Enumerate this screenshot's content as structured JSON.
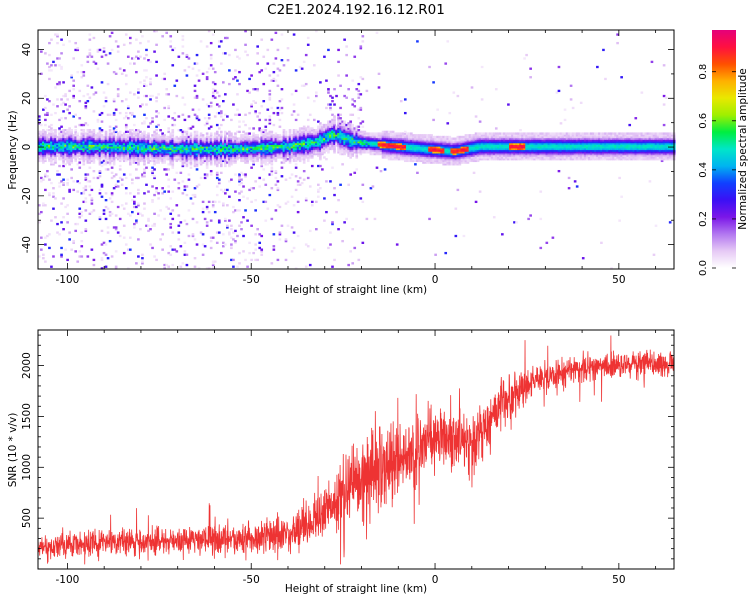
{
  "figure": {
    "title": "C2E1.2024.192.16.12.R01"
  },
  "chart_data": [
    {
      "type": "heatmap",
      "xlabel": "Height of straight line (km)",
      "ylabel": "Frequency (Hz)",
      "xlim": [
        -108,
        65
      ],
      "ylim": [
        -50,
        48
      ],
      "xticks": [
        -100,
        -50,
        0,
        50
      ],
      "yticks": [
        -40,
        -20,
        0,
        20,
        40
      ],
      "grid": false,
      "colorbar": {
        "label": "Normalized spectral amplitude",
        "range": [
          0,
          0.97
        ],
        "ticks": [
          0.0,
          0.2,
          0.4,
          0.6,
          0.8
        ],
        "colormap": [
          "#ffffff",
          "#e6c9f5",
          "#b277f0",
          "#7b16e8",
          "#3b10f5",
          "#1040ff",
          "#00b4f0",
          "#00e6c8",
          "#00ee40",
          "#a0ef00",
          "#e9e800",
          "#ffb000",
          "#ff5000",
          "#ff1040",
          "#e5007a"
        ]
      },
      "ridge_center_hz": [
        [
          -108,
          0
        ],
        [
          -90,
          0
        ],
        [
          -70,
          -1
        ],
        [
          -55,
          -1
        ],
        [
          -40,
          0
        ],
        [
          -32,
          2
        ],
        [
          -28,
          5
        ],
        [
          -22,
          2
        ],
        [
          -10,
          0
        ],
        [
          5,
          -2
        ],
        [
          12,
          0
        ],
        [
          30,
          0
        ],
        [
          65,
          0
        ]
      ],
      "peak_amplitude_segments_km": [
        [
          -16,
          -8
        ],
        [
          -2,
          2
        ],
        [
          4,
          9
        ],
        [
          20,
          24
        ]
      ]
    },
    {
      "type": "line",
      "xlabel": "Height of straight line (km)",
      "ylabel": "SNR (10 * v/v)",
      "xlim": [
        -108,
        65
      ],
      "ylim": [
        0,
        2350
      ],
      "xticks": [
        -100,
        -50,
        0,
        50
      ],
      "yticks": [
        500,
        1000,
        1500,
        2000
      ],
      "grid": false,
      "line_color": "#ee3333",
      "series": [
        {
          "x": [
            -108,
            -100,
            -90,
            -80,
            -70,
            -60,
            -50,
            -40,
            -35,
            -30,
            -25,
            -20,
            -15,
            -10,
            -5,
            0,
            5,
            10,
            15,
            20,
            25,
            30,
            35,
            40,
            50,
            60,
            65
          ],
          "y": [
            210,
            240,
            270,
            260,
            280,
            290,
            300,
            360,
            420,
            560,
            700,
            870,
            1020,
            1070,
            1200,
            1300,
            1300,
            1180,
            1450,
            1680,
            1800,
            1870,
            1930,
            1970,
            2000,
            2020,
            2040
          ],
          "noise_amplitude": [
            150,
            180,
            210,
            200,
            200,
            210,
            210,
            250,
            300,
            420,
            520,
            620,
            620,
            560,
            480,
            430,
            400,
            420,
            430,
            330,
            260,
            230,
            210,
            200,
            190,
            190,
            190
          ]
        }
      ]
    }
  ]
}
